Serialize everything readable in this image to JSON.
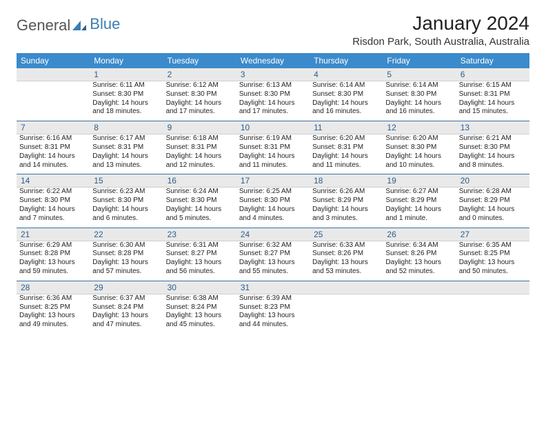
{
  "logo": {
    "text_a": "General",
    "text_b": "Blue"
  },
  "title": "January 2024",
  "location": "Risdon Park, South Australia, Australia",
  "colors": {
    "header_bg": "#3b8acb",
    "header_text": "#ffffff",
    "daynum_bg": "#e9e9e9",
    "daynum_text": "#2c5e8a",
    "rule": "#3b6fa0",
    "page_bg": "#ffffff",
    "logo_blue": "#3a7db5"
  },
  "days_of_week": [
    "Sunday",
    "Monday",
    "Tuesday",
    "Wednesday",
    "Thursday",
    "Friday",
    "Saturday"
  ],
  "weeks": [
    {
      "nums": [
        "",
        "1",
        "2",
        "3",
        "4",
        "5",
        "6"
      ],
      "cells": [
        [],
        [
          "Sunrise: 6:11 AM",
          "Sunset: 8:30 PM",
          "Daylight: 14 hours",
          "and 18 minutes."
        ],
        [
          "Sunrise: 6:12 AM",
          "Sunset: 8:30 PM",
          "Daylight: 14 hours",
          "and 17 minutes."
        ],
        [
          "Sunrise: 6:13 AM",
          "Sunset: 8:30 PM",
          "Daylight: 14 hours",
          "and 17 minutes."
        ],
        [
          "Sunrise: 6:14 AM",
          "Sunset: 8:30 PM",
          "Daylight: 14 hours",
          "and 16 minutes."
        ],
        [
          "Sunrise: 6:14 AM",
          "Sunset: 8:30 PM",
          "Daylight: 14 hours",
          "and 16 minutes."
        ],
        [
          "Sunrise: 6:15 AM",
          "Sunset: 8:31 PM",
          "Daylight: 14 hours",
          "and 15 minutes."
        ]
      ]
    },
    {
      "nums": [
        "7",
        "8",
        "9",
        "10",
        "11",
        "12",
        "13"
      ],
      "cells": [
        [
          "Sunrise: 6:16 AM",
          "Sunset: 8:31 PM",
          "Daylight: 14 hours",
          "and 14 minutes."
        ],
        [
          "Sunrise: 6:17 AM",
          "Sunset: 8:31 PM",
          "Daylight: 14 hours",
          "and 13 minutes."
        ],
        [
          "Sunrise: 6:18 AM",
          "Sunset: 8:31 PM",
          "Daylight: 14 hours",
          "and 12 minutes."
        ],
        [
          "Sunrise: 6:19 AM",
          "Sunset: 8:31 PM",
          "Daylight: 14 hours",
          "and 11 minutes."
        ],
        [
          "Sunrise: 6:20 AM",
          "Sunset: 8:31 PM",
          "Daylight: 14 hours",
          "and 11 minutes."
        ],
        [
          "Sunrise: 6:20 AM",
          "Sunset: 8:30 PM",
          "Daylight: 14 hours",
          "and 10 minutes."
        ],
        [
          "Sunrise: 6:21 AM",
          "Sunset: 8:30 PM",
          "Daylight: 14 hours",
          "and 8 minutes."
        ]
      ]
    },
    {
      "nums": [
        "14",
        "15",
        "16",
        "17",
        "18",
        "19",
        "20"
      ],
      "cells": [
        [
          "Sunrise: 6:22 AM",
          "Sunset: 8:30 PM",
          "Daylight: 14 hours",
          "and 7 minutes."
        ],
        [
          "Sunrise: 6:23 AM",
          "Sunset: 8:30 PM",
          "Daylight: 14 hours",
          "and 6 minutes."
        ],
        [
          "Sunrise: 6:24 AM",
          "Sunset: 8:30 PM",
          "Daylight: 14 hours",
          "and 5 minutes."
        ],
        [
          "Sunrise: 6:25 AM",
          "Sunset: 8:30 PM",
          "Daylight: 14 hours",
          "and 4 minutes."
        ],
        [
          "Sunrise: 6:26 AM",
          "Sunset: 8:29 PM",
          "Daylight: 14 hours",
          "and 3 minutes."
        ],
        [
          "Sunrise: 6:27 AM",
          "Sunset: 8:29 PM",
          "Daylight: 14 hours",
          "and 1 minute."
        ],
        [
          "Sunrise: 6:28 AM",
          "Sunset: 8:29 PM",
          "Daylight: 14 hours",
          "and 0 minutes."
        ]
      ]
    },
    {
      "nums": [
        "21",
        "22",
        "23",
        "24",
        "25",
        "26",
        "27"
      ],
      "cells": [
        [
          "Sunrise: 6:29 AM",
          "Sunset: 8:28 PM",
          "Daylight: 13 hours",
          "and 59 minutes."
        ],
        [
          "Sunrise: 6:30 AM",
          "Sunset: 8:28 PM",
          "Daylight: 13 hours",
          "and 57 minutes."
        ],
        [
          "Sunrise: 6:31 AM",
          "Sunset: 8:27 PM",
          "Daylight: 13 hours",
          "and 56 minutes."
        ],
        [
          "Sunrise: 6:32 AM",
          "Sunset: 8:27 PM",
          "Daylight: 13 hours",
          "and 55 minutes."
        ],
        [
          "Sunrise: 6:33 AM",
          "Sunset: 8:26 PM",
          "Daylight: 13 hours",
          "and 53 minutes."
        ],
        [
          "Sunrise: 6:34 AM",
          "Sunset: 8:26 PM",
          "Daylight: 13 hours",
          "and 52 minutes."
        ],
        [
          "Sunrise: 6:35 AM",
          "Sunset: 8:25 PM",
          "Daylight: 13 hours",
          "and 50 minutes."
        ]
      ]
    },
    {
      "nums": [
        "28",
        "29",
        "30",
        "31",
        "",
        "",
        ""
      ],
      "cells": [
        [
          "Sunrise: 6:36 AM",
          "Sunset: 8:25 PM",
          "Daylight: 13 hours",
          "and 49 minutes."
        ],
        [
          "Sunrise: 6:37 AM",
          "Sunset: 8:24 PM",
          "Daylight: 13 hours",
          "and 47 minutes."
        ],
        [
          "Sunrise: 6:38 AM",
          "Sunset: 8:24 PM",
          "Daylight: 13 hours",
          "and 45 minutes."
        ],
        [
          "Sunrise: 6:39 AM",
          "Sunset: 8:23 PM",
          "Daylight: 13 hours",
          "and 44 minutes."
        ],
        [],
        [],
        []
      ]
    }
  ]
}
